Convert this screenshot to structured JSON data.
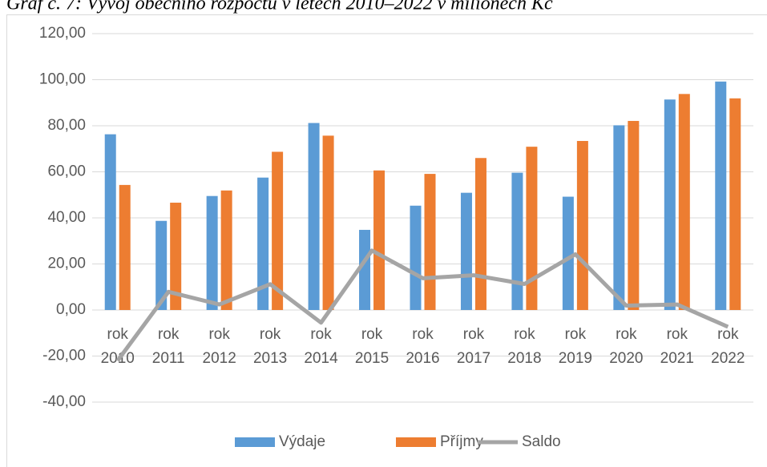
{
  "chart_data": {
    "type": "bar",
    "title": "Graf č. 7: Vývoj obecního rozpočtu v letech 2010–2022 v milionech Kč",
    "categories": [
      "rok 2010",
      "rok 2011",
      "rok 2012",
      "rok 2013",
      "rok 2014",
      "rok 2015",
      "rok 2016",
      "rok 2017",
      "rok 2018",
      "rok 2019",
      "rok 2020",
      "rok 2021",
      "rok 2022"
    ],
    "series": [
      {
        "name": "Výdaje",
        "color": "#5b9bd5",
        "kind": "bar",
        "values": [
          76.3,
          38.7,
          49.5,
          57.5,
          81.2,
          34.8,
          45.3,
          50.9,
          59.6,
          49.2,
          80.2,
          91.4,
          99.2
        ]
      },
      {
        "name": "Příjmy",
        "color": "#ed7d31",
        "kind": "bar",
        "values": [
          54.3,
          46.6,
          51.9,
          68.7,
          75.7,
          60.6,
          59.1,
          66.0,
          70.9,
          73.4,
          82.1,
          93.8,
          91.9
        ]
      },
      {
        "name": "Saldo",
        "color": "#a5a5a5",
        "kind": "line",
        "values": [
          -22.0,
          7.9,
          2.4,
          11.2,
          -5.5,
          25.8,
          13.8,
          15.1,
          11.3,
          24.2,
          1.9,
          2.4,
          -7.3
        ]
      }
    ],
    "ylim": [
      -40,
      120
    ],
    "yticks": [
      {
        "value": -40,
        "label": "-40,00"
      },
      {
        "value": -20,
        "label": "-20,00"
      },
      {
        "value": 0,
        "label": "0,00"
      },
      {
        "value": 20,
        "label": "20,00"
      },
      {
        "value": 40,
        "label": "40,00"
      },
      {
        "value": 60,
        "label": "60,00"
      },
      {
        "value": 80,
        "label": "80,00"
      },
      {
        "value": 100,
        "label": "100,00"
      },
      {
        "value": 120,
        "label": "120,00"
      }
    ],
    "grid": true,
    "legend": "bottom"
  }
}
